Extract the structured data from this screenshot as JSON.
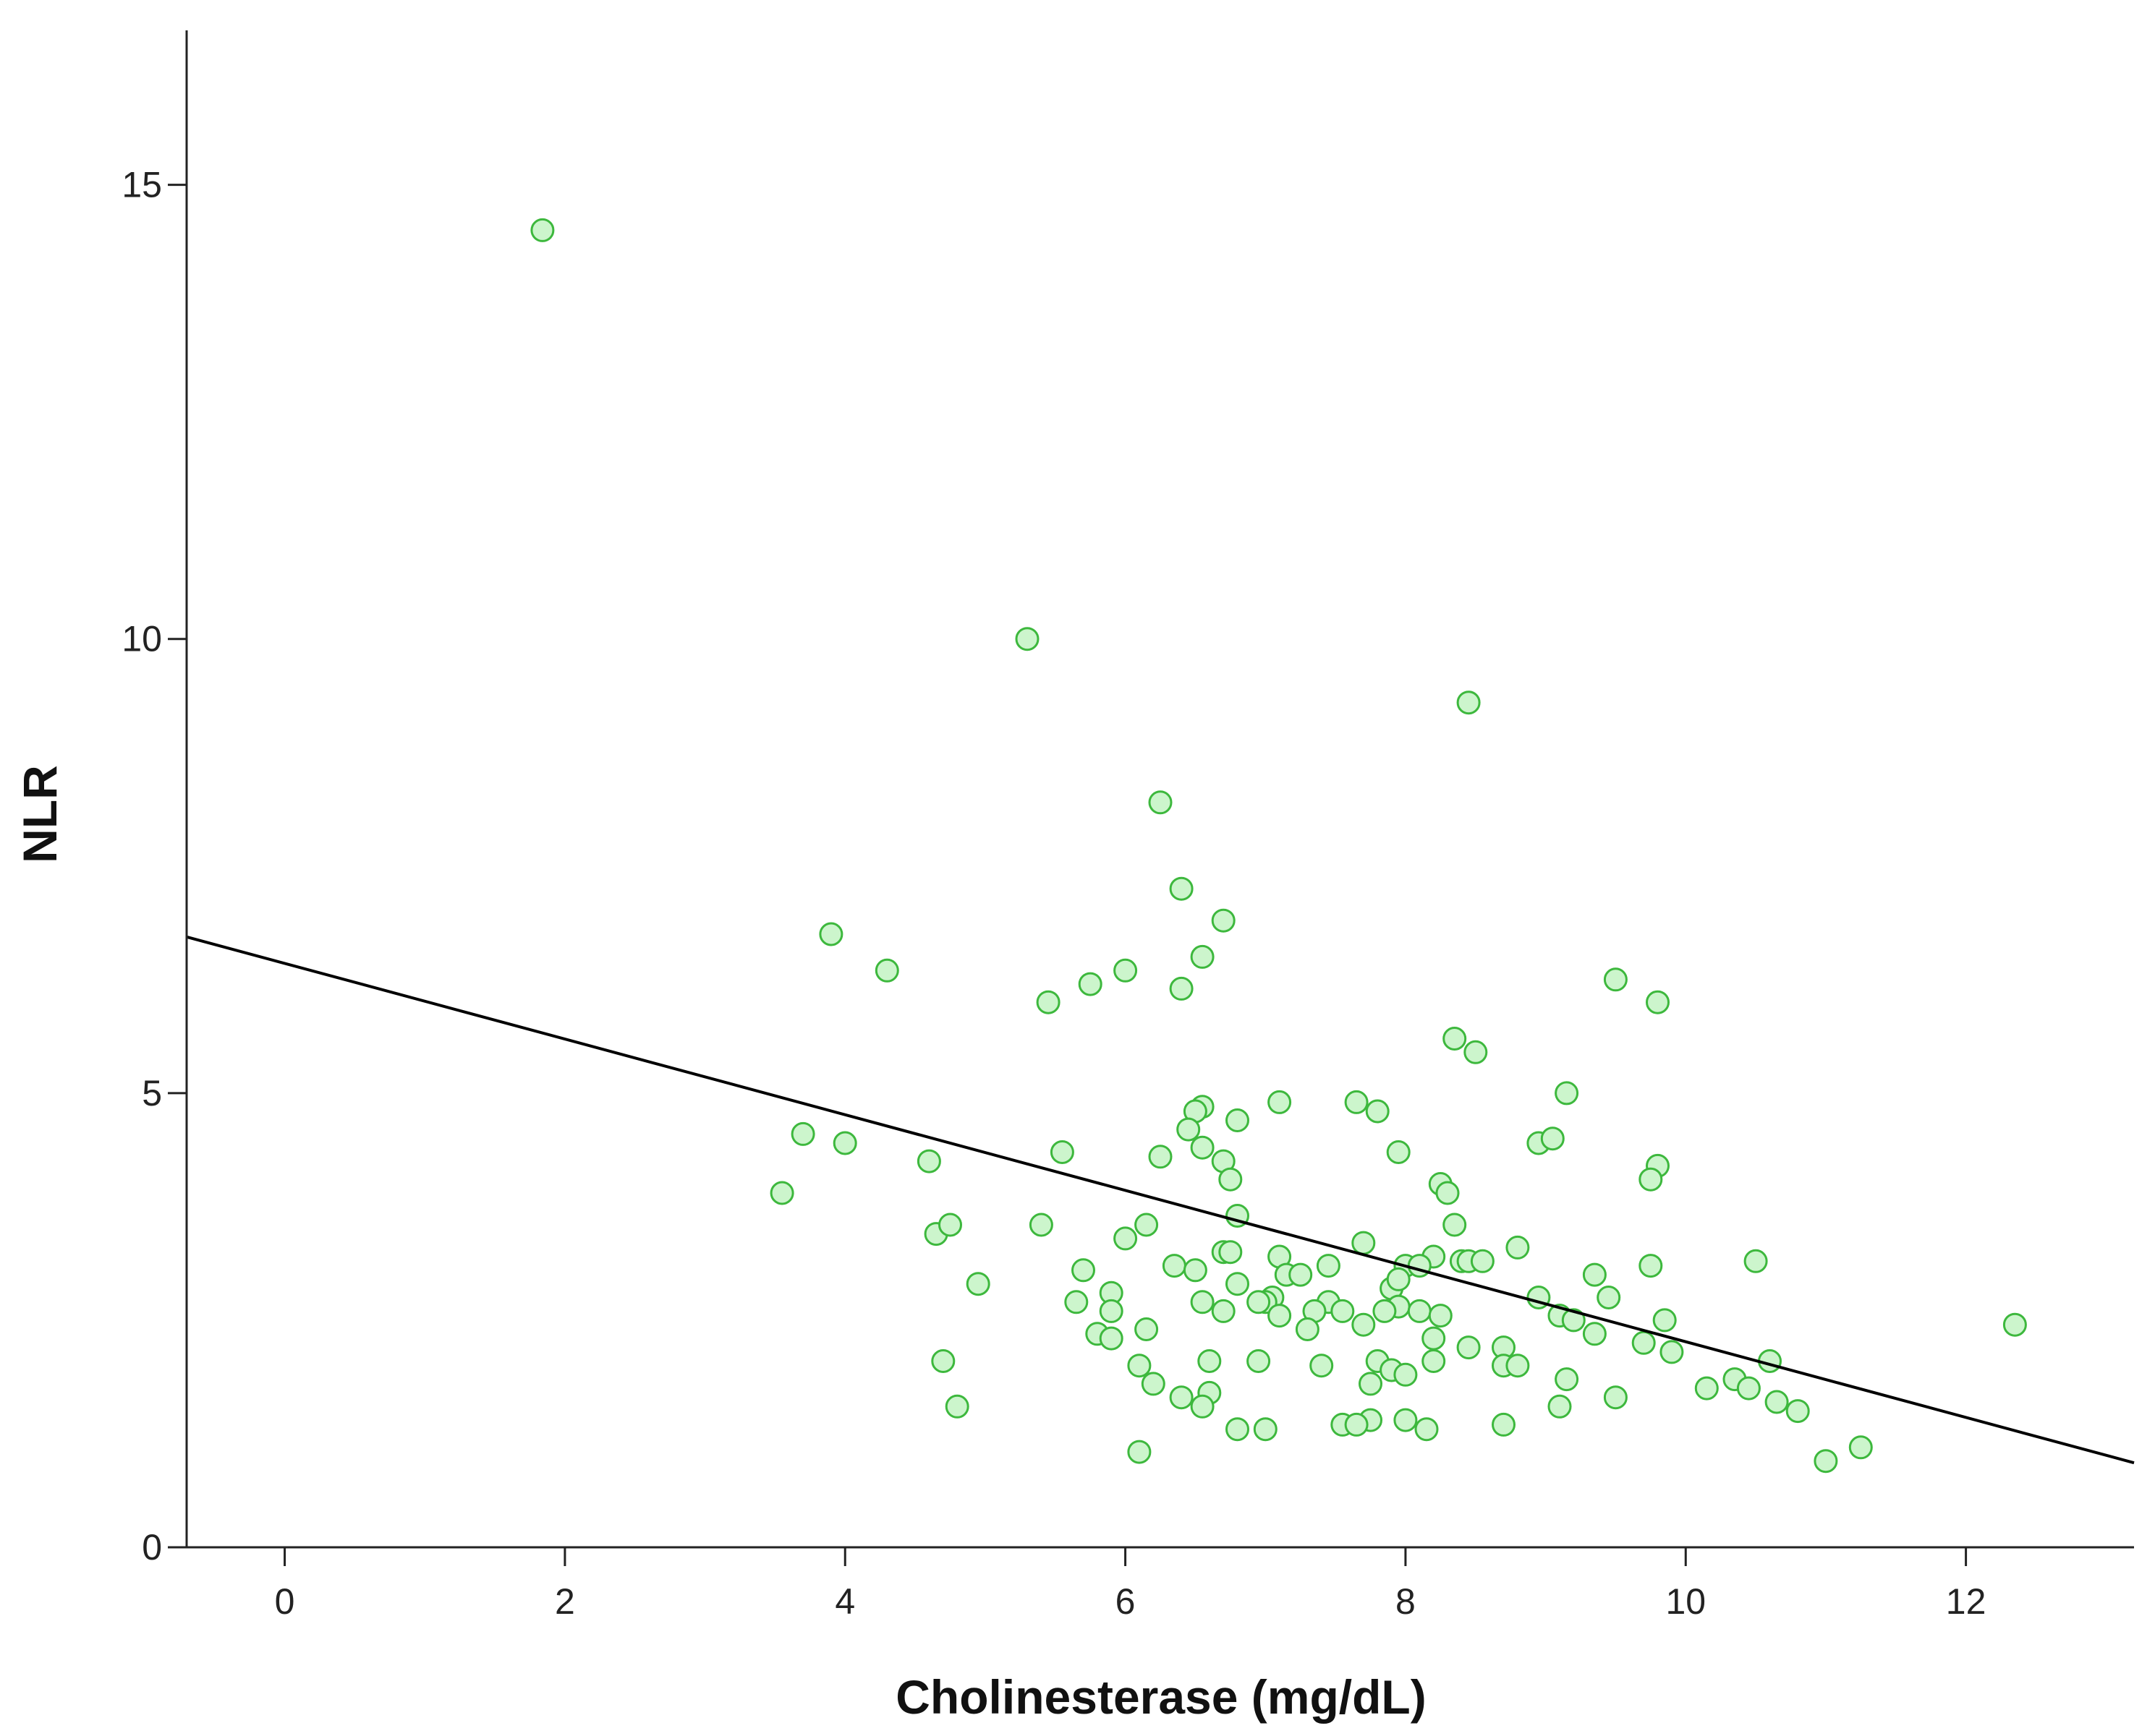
{
  "chart_data": {
    "type": "scatter",
    "title": "",
    "xlabel": "Cholinesterase (mg/dL)",
    "ylabel": "NLR",
    "xlim": [
      -0.7,
      13.2
    ],
    "ylim": [
      0,
      16.7
    ],
    "x_ticks": [
      0,
      2,
      4,
      6,
      8,
      10,
      12
    ],
    "y_ticks": [
      0,
      5,
      10,
      15
    ],
    "grid": false,
    "legend": "none",
    "colors": {
      "marker_fill": "#ccf5cc",
      "marker_stroke": "#3db83d",
      "line": "#000000",
      "axis": "#222222"
    },
    "fit_line": {
      "x": [
        -0.7,
        13.2
      ],
      "y": [
        6.72,
        0.93
      ]
    },
    "series": [
      {
        "name": "NLR vs Cholinesterase",
        "points": [
          [
            1.84,
            14.5
          ],
          [
            5.3,
            10.0
          ],
          [
            8.45,
            9.3
          ],
          [
            6.25,
            8.2
          ],
          [
            6.4,
            7.25
          ],
          [
            6.7,
            6.9
          ],
          [
            3.9,
            6.75
          ],
          [
            6.55,
            6.5
          ],
          [
            4.3,
            6.35
          ],
          [
            6.0,
            6.35
          ],
          [
            5.75,
            6.2
          ],
          [
            6.4,
            6.15
          ],
          [
            9.5,
            6.25
          ],
          [
            5.45,
            6.0
          ],
          [
            9.8,
            6.0
          ],
          [
            8.35,
            5.6
          ],
          [
            8.5,
            5.45
          ],
          [
            9.15,
            5.0
          ],
          [
            7.1,
            4.9
          ],
          [
            7.65,
            4.9
          ],
          [
            6.55,
            4.85
          ],
          [
            6.5,
            4.8
          ],
          [
            7.8,
            4.8
          ],
          [
            6.8,
            4.7
          ],
          [
            6.45,
            4.6
          ],
          [
            3.7,
            4.55
          ],
          [
            4.0,
            4.45
          ],
          [
            8.95,
            4.45
          ],
          [
            9.05,
            4.5
          ],
          [
            6.55,
            4.4
          ],
          [
            5.55,
            4.35
          ],
          [
            7.95,
            4.35
          ],
          [
            4.6,
            4.25
          ],
          [
            6.25,
            4.3
          ],
          [
            6.7,
            4.25
          ],
          [
            9.8,
            4.2
          ],
          [
            9.75,
            4.05
          ],
          [
            6.75,
            4.05
          ],
          [
            3.55,
            3.9
          ],
          [
            8.25,
            4.0
          ],
          [
            8.3,
            3.9
          ],
          [
            6.8,
            3.65
          ],
          [
            5.4,
            3.55
          ],
          [
            6.15,
            3.55
          ],
          [
            8.35,
            3.55
          ],
          [
            4.65,
            3.45
          ],
          [
            4.75,
            3.55
          ],
          [
            6.0,
            3.4
          ],
          [
            7.7,
            3.35
          ],
          [
            8.8,
            3.3
          ],
          [
            6.7,
            3.25
          ],
          [
            6.75,
            3.25
          ],
          [
            7.1,
            3.2
          ],
          [
            8.2,
            3.2
          ],
          [
            8.4,
            3.15
          ],
          [
            8.45,
            3.15
          ],
          [
            8.55,
            3.15
          ],
          [
            10.5,
            3.15
          ],
          [
            6.35,
            3.1
          ],
          [
            7.45,
            3.1
          ],
          [
            8.0,
            3.1
          ],
          [
            8.1,
            3.1
          ],
          [
            9.75,
            3.1
          ],
          [
            5.7,
            3.05
          ],
          [
            6.5,
            3.05
          ],
          [
            7.15,
            3.0
          ],
          [
            7.25,
            3.0
          ],
          [
            9.35,
            3.0
          ],
          [
            6.8,
            2.9
          ],
          [
            4.95,
            2.9
          ],
          [
            7.9,
            2.85
          ],
          [
            7.95,
            2.95
          ],
          [
            5.9,
            2.8
          ],
          [
            8.95,
            2.75
          ],
          [
            7.05,
            2.75
          ],
          [
            7.0,
            2.7
          ],
          [
            9.45,
            2.75
          ],
          [
            5.65,
            2.7
          ],
          [
            6.55,
            2.7
          ],
          [
            6.95,
            2.7
          ],
          [
            7.45,
            2.7
          ],
          [
            7.95,
            2.65
          ],
          [
            5.9,
            2.6
          ],
          [
            6.7,
            2.6
          ],
          [
            7.1,
            2.55
          ],
          [
            7.35,
            2.6
          ],
          [
            7.55,
            2.6
          ],
          [
            7.85,
            2.6
          ],
          [
            8.1,
            2.6
          ],
          [
            8.25,
            2.55
          ],
          [
            9.1,
            2.55
          ],
          [
            9.2,
            2.5
          ],
          [
            9.85,
            2.5
          ],
          [
            12.35,
            2.45
          ],
          [
            6.15,
            2.4
          ],
          [
            7.3,
            2.4
          ],
          [
            7.7,
            2.45
          ],
          [
            5.8,
            2.35
          ],
          [
            9.35,
            2.35
          ],
          [
            5.9,
            2.3
          ],
          [
            8.2,
            2.3
          ],
          [
            9.7,
            2.25
          ],
          [
            8.45,
            2.2
          ],
          [
            8.7,
            2.2
          ],
          [
            9.9,
            2.15
          ],
          [
            4.7,
            2.05
          ],
          [
            6.1,
            2.0
          ],
          [
            6.6,
            2.05
          ],
          [
            6.95,
            2.05
          ],
          [
            7.4,
            2.0
          ],
          [
            7.8,
            2.05
          ],
          [
            8.2,
            2.05
          ],
          [
            8.7,
            2.0
          ],
          [
            8.8,
            2.0
          ],
          [
            10.6,
            2.05
          ],
          [
            7.9,
            1.95
          ],
          [
            8.0,
            1.9
          ],
          [
            9.15,
            1.85
          ],
          [
            10.35,
            1.85
          ],
          [
            6.2,
            1.8
          ],
          [
            7.75,
            1.8
          ],
          [
            10.15,
            1.75
          ],
          [
            10.45,
            1.75
          ],
          [
            6.4,
            1.65
          ],
          [
            6.6,
            1.7
          ],
          [
            9.5,
            1.65
          ],
          [
            10.65,
            1.6
          ],
          [
            4.8,
            1.55
          ],
          [
            6.55,
            1.55
          ],
          [
            9.1,
            1.55
          ],
          [
            10.8,
            1.5
          ],
          [
            7.75,
            1.4
          ],
          [
            7.55,
            1.35
          ],
          [
            7.65,
            1.35
          ],
          [
            8.0,
            1.4
          ],
          [
            8.7,
            1.35
          ],
          [
            6.8,
            1.3
          ],
          [
            7.0,
            1.3
          ],
          [
            8.15,
            1.3
          ],
          [
            11.25,
            1.1
          ],
          [
            6.1,
            1.05
          ],
          [
            11.0,
            0.95
          ]
        ]
      }
    ]
  }
}
